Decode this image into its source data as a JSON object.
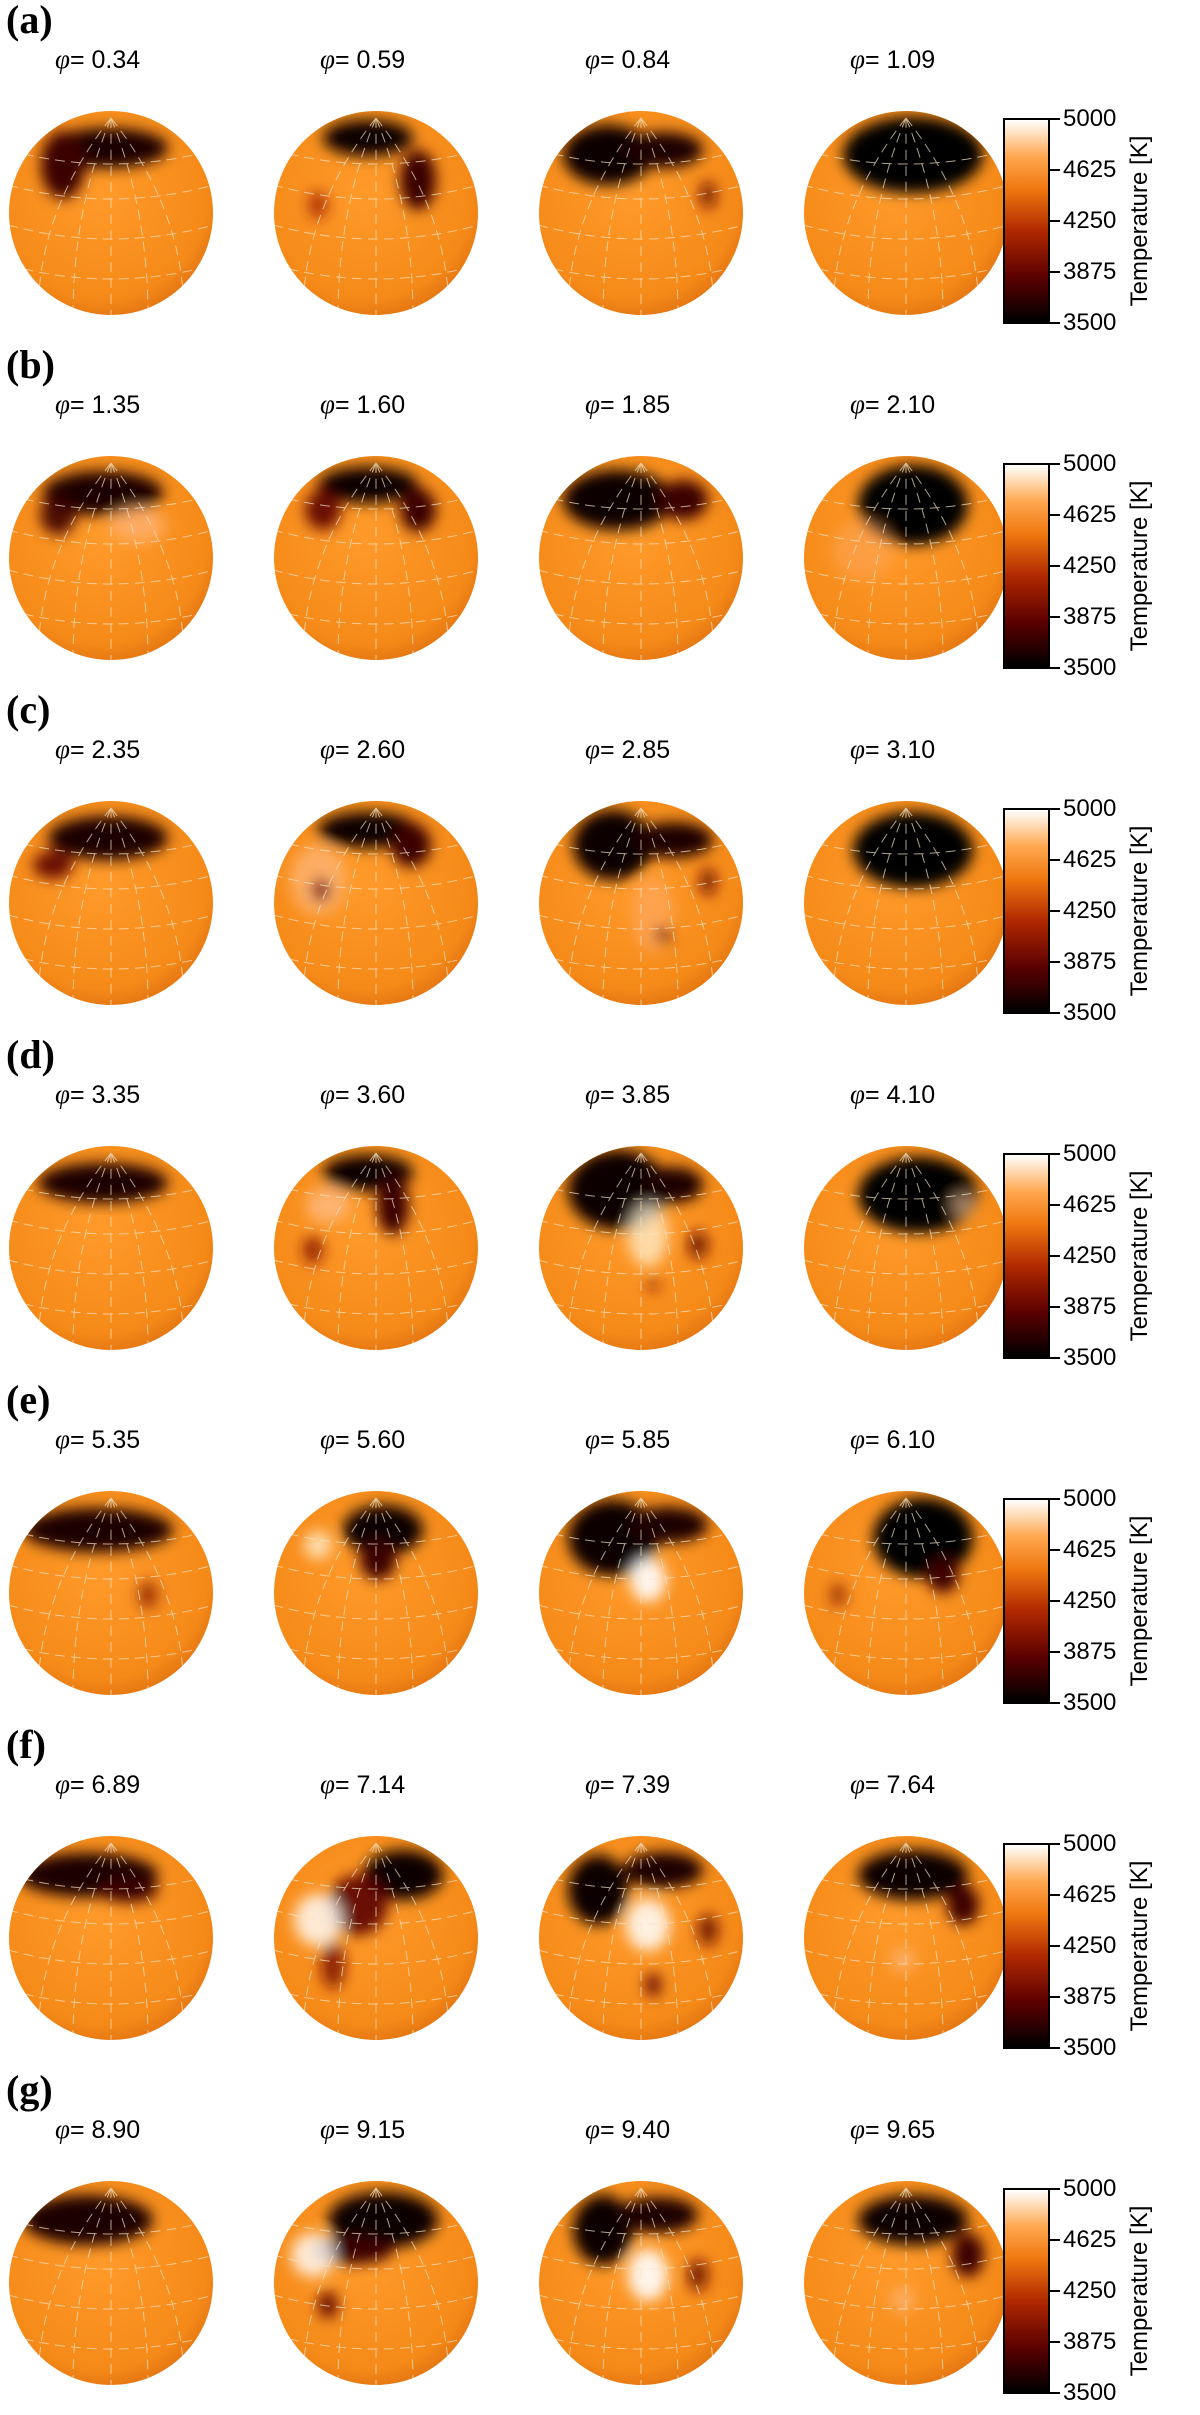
{
  "chart_data": {
    "type": "heatmap",
    "description_units": "surface temperature maps on spherical projections, one per rotational phase",
    "colorbar": {
      "label": "Temperature [K]",
      "ticks": [
        5000,
        4625,
        4250,
        3875,
        3500
      ],
      "range": [
        3500,
        5000
      ],
      "colors": [
        "#000000",
        "#5a0000",
        "#b02800",
        "#f07810",
        "#ffa850",
        "#ffffff"
      ]
    },
    "phase_prefix": "=",
    "phase_symbol": "φ",
    "panels": [
      {
        "label": "(a)",
        "phases": [
          "0.34",
          "0.59",
          "0.84",
          "1.09"
        ]
      },
      {
        "label": "(b)",
        "phases": [
          "1.35",
          "1.60",
          "1.85",
          "2.10"
        ]
      },
      {
        "label": "(c)",
        "phases": [
          "2.35",
          "2.60",
          "2.85",
          "3.10"
        ]
      },
      {
        "label": "(d)",
        "phases": [
          "3.35",
          "3.60",
          "3.85",
          "4.10"
        ]
      },
      {
        "label": "(e)",
        "phases": [
          "5.35",
          "5.60",
          "5.85",
          "6.10"
        ]
      },
      {
        "label": "(f)",
        "phases": [
          "6.89",
          "7.14",
          "7.39",
          "7.64"
        ]
      },
      {
        "label": "(g)",
        "phases": [
          "8.90",
          "9.15",
          "9.40",
          "9.65"
        ]
      }
    ]
  }
}
